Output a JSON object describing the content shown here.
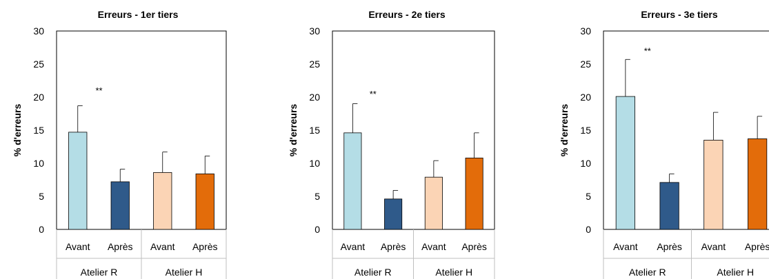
{
  "chart_data": [
    {
      "type": "bar",
      "title": "Erreurs - 1er tiers",
      "ylabel": "% d'erreurs",
      "xlabel": "",
      "ylim": [
        0,
        30
      ],
      "yticks": [
        "0",
        "5",
        "10",
        "15",
        "20",
        "25",
        "30"
      ],
      "categories": [
        "Avant",
        "Après",
        "Avant",
        "Après"
      ],
      "groups": [
        {
          "label": "Atelier R",
          "categories": [
            "Avant",
            "Après"
          ]
        },
        {
          "label": "Atelier H",
          "categories": [
            "Avant",
            "Après"
          ]
        }
      ],
      "values": [
        14.7,
        7.2,
        8.6,
        8.4
      ],
      "errors": [
        4.0,
        1.9,
        3.1,
        2.7
      ],
      "colors": [
        "#b4dde6",
        "#2f5a8a",
        "#fbd4b5",
        "#e36c0a"
      ],
      "annotation": {
        "text": "**",
        "x_between": [
          0,
          1
        ],
        "y": 20.5
      }
    },
    {
      "type": "bar",
      "title": "Erreurs - 2e tiers",
      "ylabel": "% d'erreurs",
      "xlabel": "",
      "ylim": [
        0,
        30
      ],
      "yticks": [
        "0",
        "5",
        "10",
        "15",
        "20",
        "25",
        "30"
      ],
      "categories": [
        "Avant",
        "Après",
        "Avant",
        "Après"
      ],
      "groups": [
        {
          "label": "Atelier R",
          "categories": [
            "Avant",
            "Après"
          ]
        },
        {
          "label": "Atelier H",
          "categories": [
            "Avant",
            "Après"
          ]
        }
      ],
      "values": [
        14.6,
        4.6,
        7.9,
        10.8
      ],
      "errors": [
        4.4,
        1.3,
        2.5,
        3.8
      ],
      "colors": [
        "#b4dde6",
        "#2f5a8a",
        "#fbd4b5",
        "#e36c0a"
      ],
      "annotation": {
        "text": "**",
        "x_between": [
          0,
          1
        ],
        "y": 20.0
      }
    },
    {
      "type": "bar",
      "title": "Erreurs - 3e tiers",
      "ylabel": "% d'erreurs",
      "xlabel": "",
      "ylim": [
        0,
        30
      ],
      "yticks": [
        "0",
        "5",
        "10",
        "15",
        "20",
        "25",
        "30"
      ],
      "categories": [
        "Avant",
        "Après",
        "Avant",
        "Après"
      ],
      "groups": [
        {
          "label": "Atelier R",
          "categories": [
            "Avant",
            "Après"
          ]
        },
        {
          "label": "Atelier H",
          "categories": [
            "Avant",
            "Après"
          ]
        }
      ],
      "values": [
        20.1,
        7.1,
        13.5,
        13.7
      ],
      "errors": [
        5.6,
        1.3,
        4.2,
        3.4
      ],
      "colors": [
        "#b4dde6",
        "#2f5a8a",
        "#fbd4b5",
        "#e36c0a"
      ],
      "annotation": {
        "text": "**",
        "x_between": [
          0,
          1
        ],
        "y": 26.5
      }
    }
  ]
}
